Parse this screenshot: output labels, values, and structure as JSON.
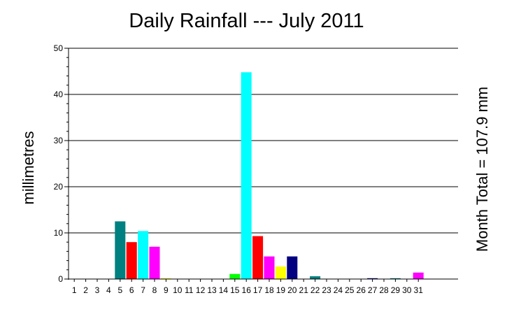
{
  "chart_data": {
    "type": "bar",
    "title": "Daily Rainfall --- July 2011",
    "xlabel": "",
    "ylabel": "millimetres",
    "annotation": "Month Total = 107.9 mm",
    "ylim": [
      0,
      50
    ],
    "yticks": [
      "0",
      "10",
      "20",
      "30",
      "40",
      "50"
    ],
    "grid": "horizontal",
    "categories": [
      "1",
      "2",
      "3",
      "4",
      "5",
      "6",
      "7",
      "8",
      "9",
      "10",
      "11",
      "12",
      "13",
      "14",
      "15",
      "16",
      "17",
      "18",
      "19",
      "20",
      "21",
      "22",
      "23",
      "24",
      "25",
      "26",
      "27",
      "28",
      "29",
      "30",
      "31"
    ],
    "values": [
      0,
      0,
      0,
      0,
      12.5,
      8,
      10.4,
      7,
      0.1,
      0,
      0,
      0,
      0,
      0,
      1.1,
      44.8,
      9.3,
      4.9,
      2.7,
      4.9,
      0,
      0.6,
      0,
      0,
      0,
      0,
      0.1,
      0,
      0.1,
      0,
      1.4
    ],
    "colors": [
      "#ff00ff",
      "#ffff00",
      "#000080",
      "#008000",
      "#008080",
      "#ff0000",
      "#00ffff",
      "#ff00ff",
      "#ffff00",
      "#000080",
      "#008000",
      "#008080",
      "#ff0000",
      "#00ffff",
      "#00ff00",
      "#00ffff",
      "#ff0000",
      "#ff00ff",
      "#ffff00",
      "#000080",
      "#008000",
      "#008080",
      "#ff0000",
      "#00ffff",
      "#ff00ff",
      "#ffff00",
      "#000080",
      "#008000",
      "#008080",
      "#ff0000",
      "#ff00ff"
    ]
  }
}
